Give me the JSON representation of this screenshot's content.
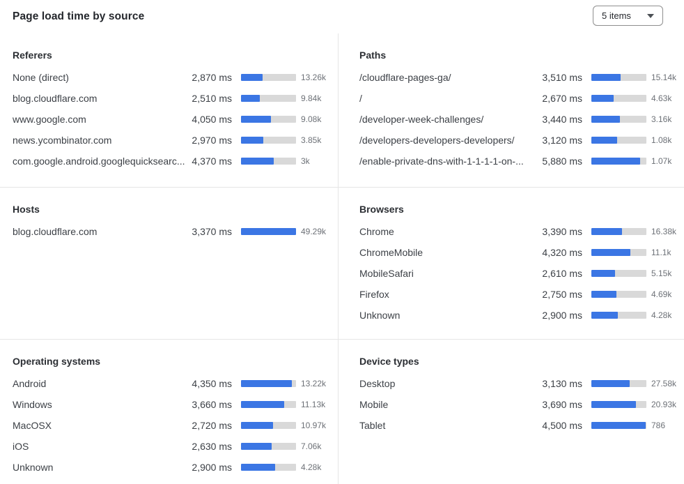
{
  "header": {
    "title": "Page load time by source",
    "items_dropdown": {
      "value": "5 items"
    }
  },
  "colors": {
    "bar_fill": "#3b76e4",
    "bar_track": "#d9d9d9",
    "divider": "#e5e5e5",
    "text_primary": "#3c4046",
    "text_count": "#6d7177"
  },
  "chart_data": [
    {
      "type": "bar",
      "title": "Referers",
      "orientation": "horizontal",
      "unit": "ms",
      "bar_scale_max_ms": 7360,
      "rows": [
        {
          "label": "None (direct)",
          "ms": 2870,
          "ms_text": "2,870 ms",
          "count": "13.26k"
        },
        {
          "label": "blog.cloudflare.com",
          "ms": 2510,
          "ms_text": "2,510 ms",
          "count": "9.84k"
        },
        {
          "label": "www.google.com",
          "ms": 4050,
          "ms_text": "4,050 ms",
          "count": "9.08k"
        },
        {
          "label": "news.ycombinator.com",
          "ms": 2970,
          "ms_text": "2,970 ms",
          "count": "3.85k"
        },
        {
          "label": "com.google.android.googlequicksearc...",
          "ms": 4370,
          "ms_text": "4,370 ms",
          "count": "3k"
        }
      ]
    },
    {
      "type": "bar",
      "title": "Paths",
      "orientation": "horizontal",
      "unit": "ms",
      "bar_scale_max_ms": 6650,
      "rows": [
        {
          "label": "/cloudflare-pages-ga/",
          "ms": 3510,
          "ms_text": "3,510 ms",
          "count": "15.14k"
        },
        {
          "label": "/",
          "ms": 2670,
          "ms_text": "2,670 ms",
          "count": "4.63k"
        },
        {
          "label": "/developer-week-challenges/",
          "ms": 3440,
          "ms_text": "3,440 ms",
          "count": "3.16k"
        },
        {
          "label": "/developers-developers-developers/",
          "ms": 3120,
          "ms_text": "3,120 ms",
          "count": "1.08k"
        },
        {
          "label": "/enable-private-dns-with-1-1-1-1-on-...",
          "ms": 5880,
          "ms_text": "5,880 ms",
          "count": "1.07k"
        }
      ]
    },
    {
      "type": "bar",
      "title": "Hosts",
      "orientation": "horizontal",
      "unit": "ms",
      "bar_scale_max_ms": 3370,
      "rows": [
        {
          "label": "blog.cloudflare.com",
          "ms": 3370,
          "ms_text": "3,370 ms",
          "count": "49.29k"
        }
      ]
    },
    {
      "type": "bar",
      "title": "Browsers",
      "orientation": "horizontal",
      "unit": "ms",
      "bar_scale_max_ms": 6100,
      "rows": [
        {
          "label": "Chrome",
          "ms": 3390,
          "ms_text": "3,390 ms",
          "count": "16.38k"
        },
        {
          "label": "ChromeMobile",
          "ms": 4320,
          "ms_text": "4,320 ms",
          "count": "11.1k"
        },
        {
          "label": "MobileSafari",
          "ms": 2610,
          "ms_text": "2,610 ms",
          "count": "5.15k"
        },
        {
          "label": "Firefox",
          "ms": 2750,
          "ms_text": "2,750 ms",
          "count": "4.69k"
        },
        {
          "label": "Unknown",
          "ms": 2900,
          "ms_text": "2,900 ms",
          "count": "4.28k"
        }
      ]
    },
    {
      "type": "bar",
      "title": "Operating systems",
      "orientation": "horizontal",
      "unit": "ms",
      "bar_scale_max_ms": 4700,
      "rows": [
        {
          "label": "Android",
          "ms": 4350,
          "ms_text": "4,350 ms",
          "count": "13.22k"
        },
        {
          "label": "Windows",
          "ms": 3660,
          "ms_text": "3,660 ms",
          "count": "11.13k"
        },
        {
          "label": "MacOSX",
          "ms": 2720,
          "ms_text": "2,720 ms",
          "count": "10.97k"
        },
        {
          "label": "iOS",
          "ms": 2630,
          "ms_text": "2,630 ms",
          "count": "7.06k"
        },
        {
          "label": "Unknown",
          "ms": 2900,
          "ms_text": "2,900 ms",
          "count": "4.28k"
        }
      ]
    },
    {
      "type": "bar",
      "title": "Device types",
      "orientation": "horizontal",
      "unit": "ms",
      "bar_scale_max_ms": 4535,
      "rows": [
        {
          "label": "Desktop",
          "ms": 3130,
          "ms_text": "3,130 ms",
          "count": "27.58k"
        },
        {
          "label": "Mobile",
          "ms": 3690,
          "ms_text": "3,690 ms",
          "count": "20.93k"
        },
        {
          "label": "Tablet",
          "ms": 4500,
          "ms_text": "4,500 ms",
          "count": "786"
        }
      ]
    }
  ]
}
